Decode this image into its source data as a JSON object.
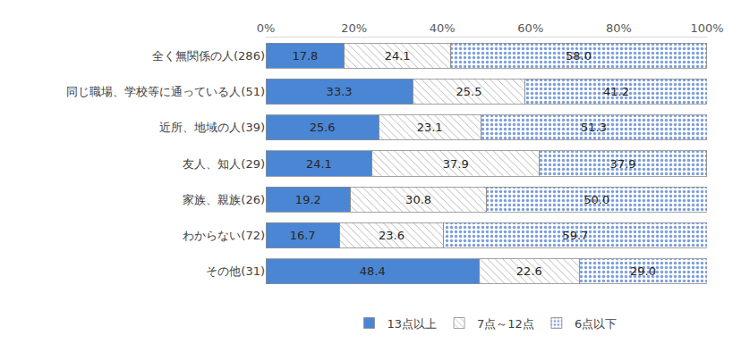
{
  "chart_data": {
    "type": "bar",
    "orientation": "horizontal",
    "stacked": true,
    "categories": [
      "全く無関係の人(286)",
      "同じ職場、学校等に通っている人(51)",
      "近所、地域の人(39)",
      "友人、知人(29)",
      "家族、親族(26)",
      "わからない(72)",
      "その他(31)"
    ],
    "series": [
      {
        "name": "13点以上",
        "color": "#4a86d4",
        "values": [
          17.8,
          33.3,
          25.6,
          24.1,
          19.2,
          16.7,
          48.4
        ],
        "value_labels": [
          "17.8",
          "33.3",
          "25.6",
          "24.1",
          "19.2",
          "16.7",
          "48.4"
        ]
      },
      {
        "name": "7点～12点",
        "color": "#f2f2f2",
        "values": [
          24.1,
          25.5,
          23.1,
          37.9,
          30.8,
          23.6,
          22.6
        ],
        "value_labels": [
          "24.1",
          "25.5",
          "23.1",
          "37.9",
          "30.8",
          "23.6",
          "22.6"
        ]
      },
      {
        "name": "6点以下",
        "color": "#b3c8ee",
        "values": [
          58.0,
          41.2,
          51.3,
          37.9,
          50.0,
          59.7,
          29.0
        ],
        "value_labels": [
          "58.0",
          "41.2",
          "51.3",
          "37.9",
          "50.0",
          "59.7",
          "29.0"
        ]
      }
    ],
    "xlim": [
      0,
      100
    ],
    "xticks": [
      {
        "value": 0,
        "label": "0%"
      },
      {
        "value": 20,
        "label": "20%"
      },
      {
        "value": 40,
        "label": "40%"
      },
      {
        "value": 60,
        "label": "60%"
      },
      {
        "value": 80,
        "label": "80%"
      },
      {
        "value": 100,
        "label": "100%"
      }
    ],
    "grid": false,
    "legend": "bottom",
    "data_labels": true
  }
}
